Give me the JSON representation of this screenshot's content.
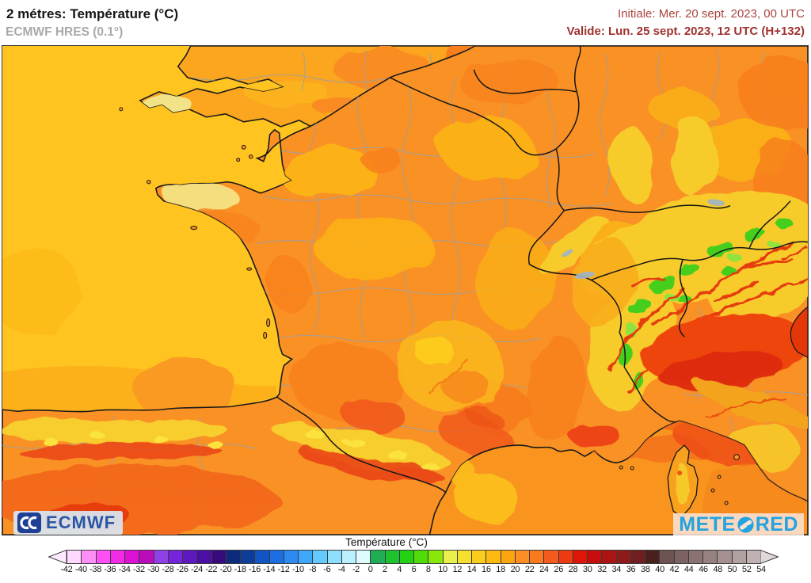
{
  "header": {
    "title": "2 métres: Température (°C)",
    "model_label": "ECMWF HRES (0.1°)",
    "run_label": "Initiale: Mer. 20 sept. 2023, 00 UTC",
    "valid_label": "Valide: Lun. 25 sept. 2023, 12 UTC (H+132)"
  },
  "map": {
    "description": "2 m temperature forecast map over France, southern England, Benelux, Germany, Switzerland, the Alps, northern Italy, Corsica and northern Spain"
  },
  "colors": {
    "sea": "#FFC41F",
    "land": "#FA9124",
    "med": "#F9951E",
    "title_text": "#161616",
    "subtitle_text": "#A9A9A9",
    "init_text": "#A8453F",
    "valid_text": "#9E322F",
    "ecmwf_blue": "#2B55A5",
    "meteored_blue": "#23A3DF"
  },
  "branding": {
    "ecmwf_label": "ECMWF",
    "meteored_full": "METEORED",
    "meteored_prefix": "METE",
    "meteored_suffix": "RED"
  },
  "colorbar": {
    "title": "Température (°C)",
    "min": -42,
    "max": 54,
    "step": 2,
    "ticks": [
      -42,
      -40,
      -38,
      -36,
      -34,
      -32,
      -30,
      -28,
      -26,
      -24,
      -22,
      -20,
      -18,
      -16,
      -14,
      -12,
      -10,
      -8,
      -6,
      -4,
      -2,
      0,
      2,
      4,
      6,
      8,
      10,
      12,
      14,
      16,
      18,
      20,
      22,
      24,
      26,
      28,
      30,
      32,
      34,
      36,
      38,
      40,
      42,
      44,
      46,
      48,
      50,
      52,
      54
    ],
    "cell_colors": [
      "#FFD9FE",
      "#FF8FF6",
      "#FE50F5",
      "#F32BE6",
      "#DE10D5",
      "#BA0CBA",
      "#8F41E8",
      "#7524DB",
      "#5F17C2",
      "#4B0FA3",
      "#380B7C",
      "#0D2B7B",
      "#0E3D99",
      "#1254C4",
      "#1D6EE1",
      "#2D8AF1",
      "#3EA8FB",
      "#62CAFD",
      "#8DDFFE",
      "#BBF0FE",
      "#DFFBFE",
      "#1FAD55",
      "#1DC22F",
      "#24D014",
      "#4FDC07",
      "#8AE70A",
      "#E9F04B",
      "#F6DF2D",
      "#FACC1E",
      "#FDBA13",
      "#FDA50E",
      "#FB8F26",
      "#F87A1D",
      "#F35B1C",
      "#EC3B11",
      "#DF1607",
      "#C90D0C",
      "#AC1313",
      "#8F1A1A",
      "#701E1E",
      "#4A1F1E",
      "#6E5353",
      "#7C6262",
      "#8A7272",
      "#978080",
      "#A49090",
      "#B2A1A1",
      "#C0B2B2"
    ],
    "left_arrow_color": "#FFEAFF",
    "right_arrow_color": "#DFD8D8"
  }
}
